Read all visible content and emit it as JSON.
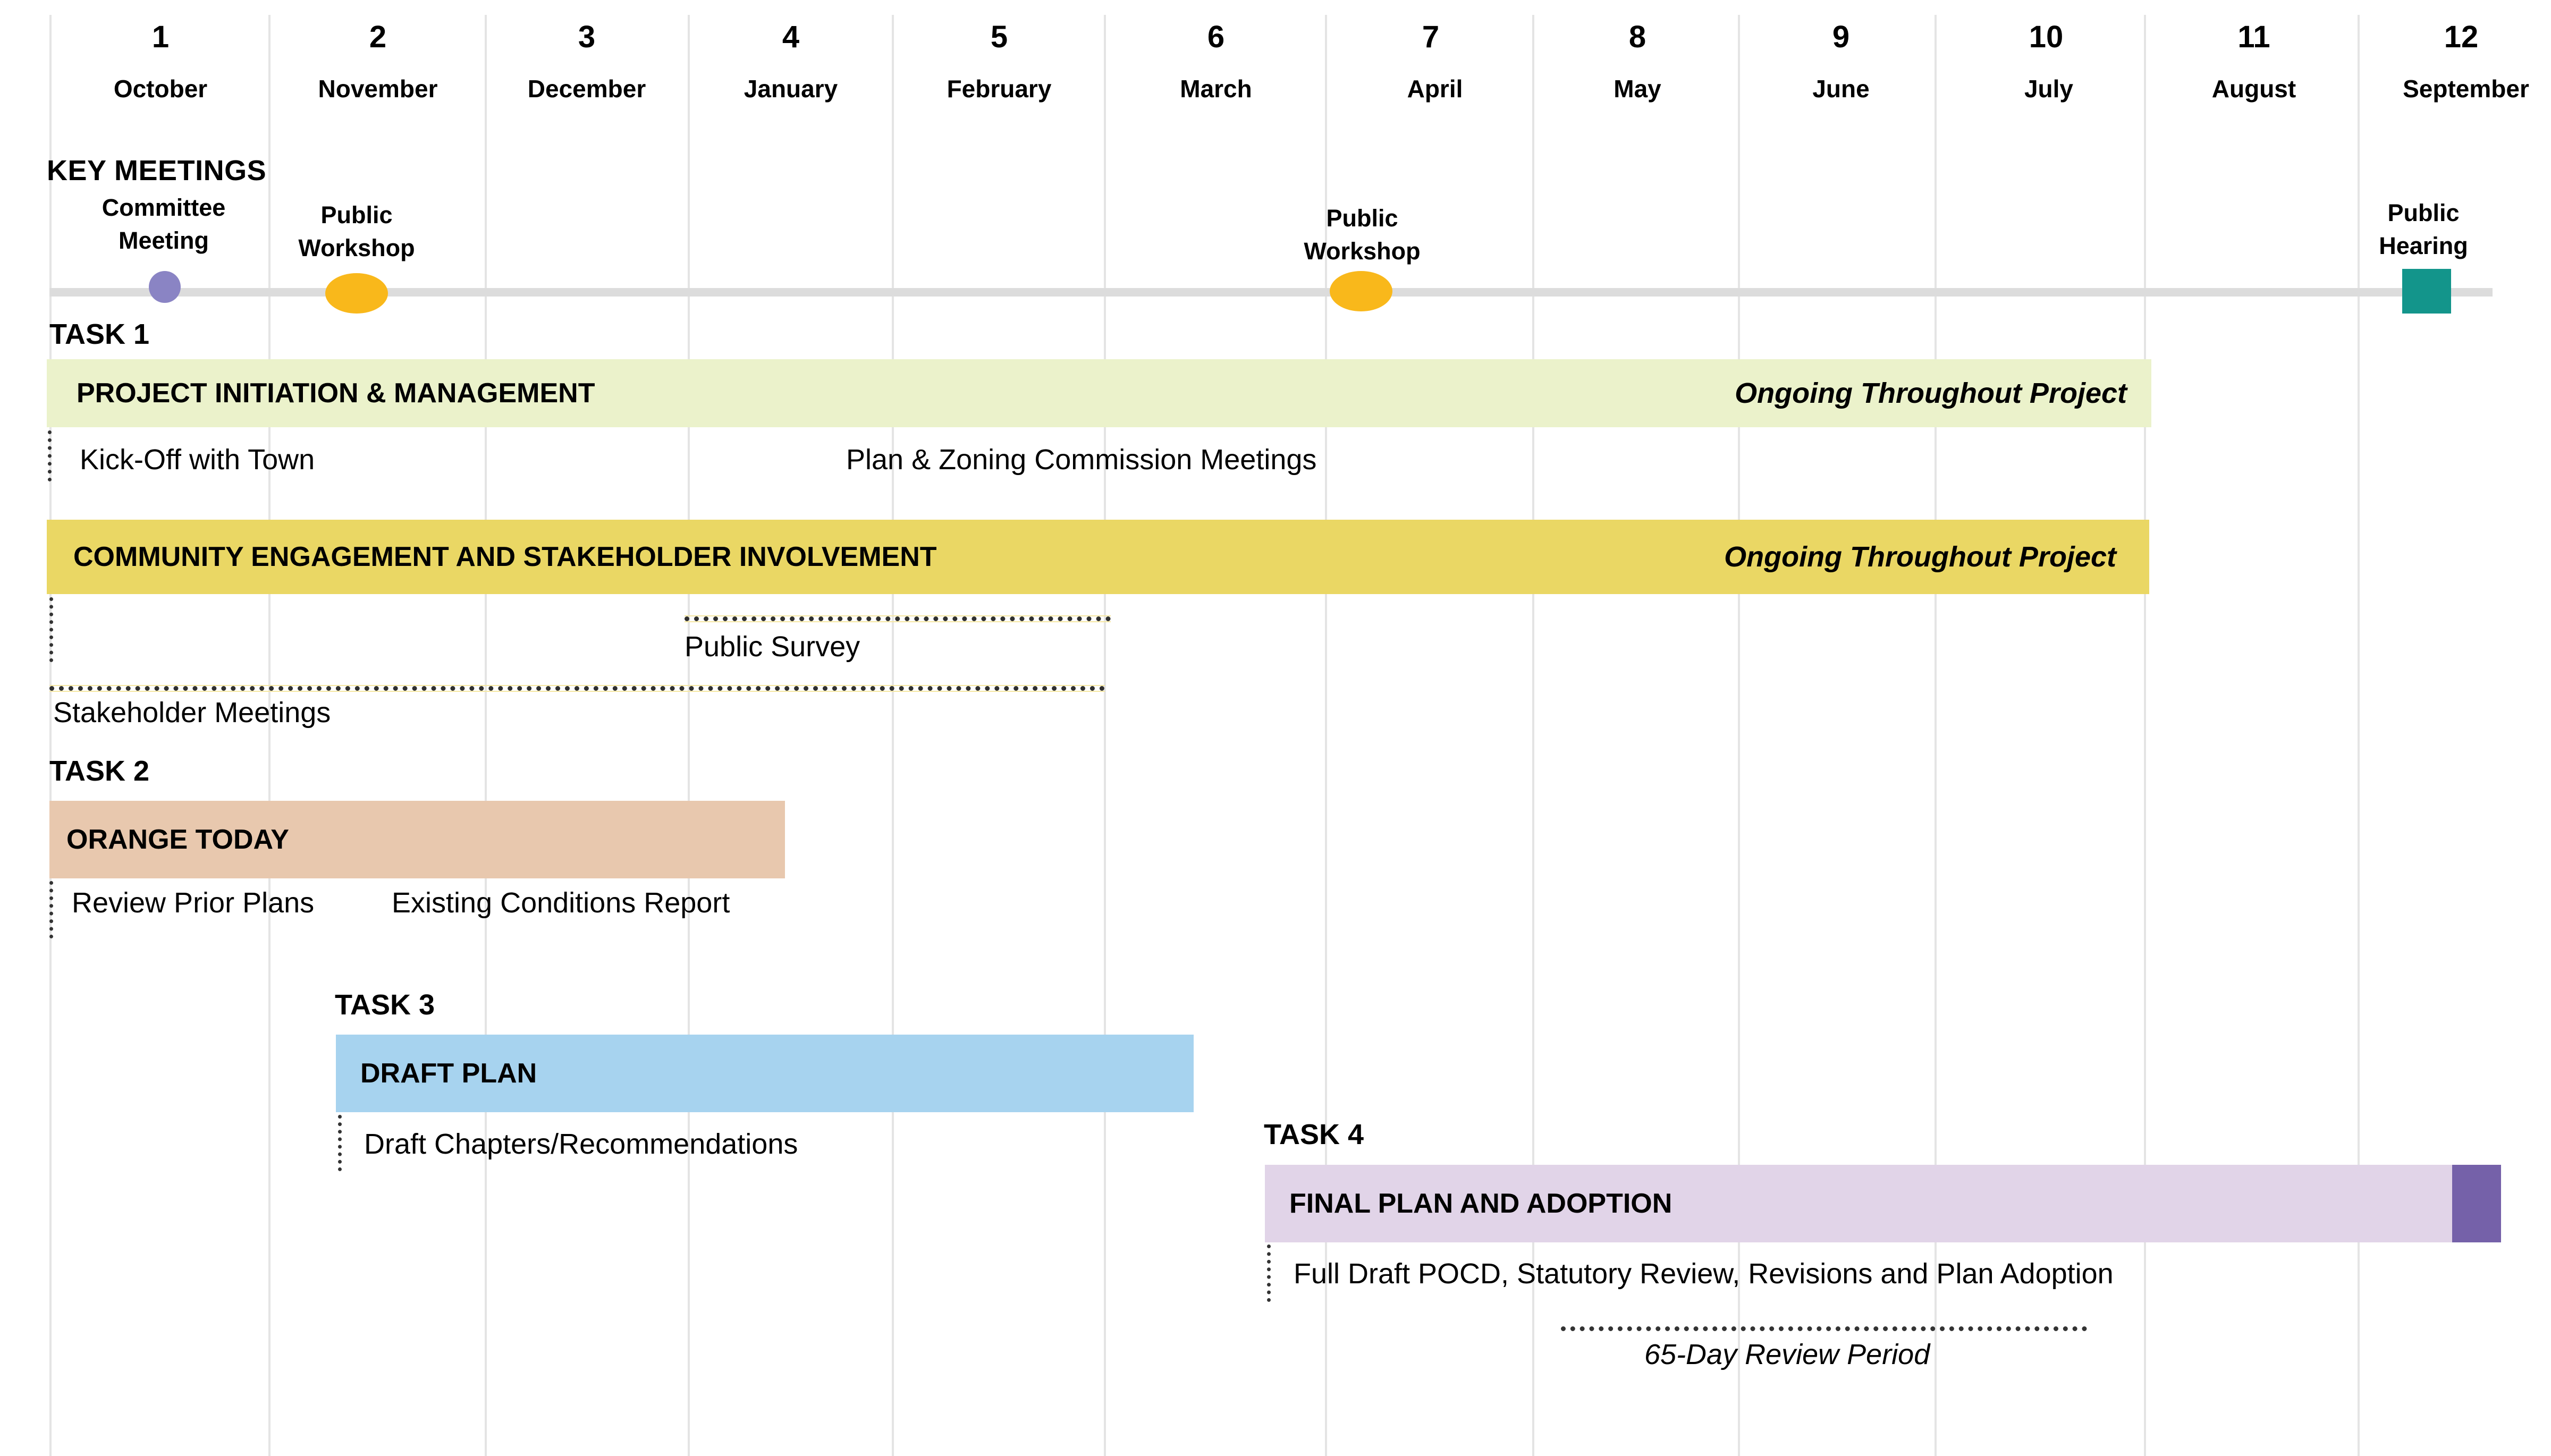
{
  "months": [
    {
      "num": "1",
      "name": "October"
    },
    {
      "num": "2",
      "name": "November"
    },
    {
      "num": "3",
      "name": "December"
    },
    {
      "num": "4",
      "name": "January"
    },
    {
      "num": "5",
      "name": "February"
    },
    {
      "num": "6",
      "name": "March"
    },
    {
      "num": "7",
      "name": "April"
    },
    {
      "num": "8",
      "name": "May"
    },
    {
      "num": "9",
      "name": "June"
    },
    {
      "num": "10",
      "name": "July"
    },
    {
      "num": "11",
      "name": "August"
    },
    {
      "num": "12",
      "name": "September"
    }
  ],
  "key_meetings": {
    "heading": "KEY MEETINGS",
    "items": [
      {
        "line1": "Committee",
        "line2": "Meeting",
        "shape": "circle",
        "color": "#8a84c4"
      },
      {
        "line1": "Public",
        "line2": "Workshop",
        "shape": "oval",
        "color": "#f9b81b"
      },
      {
        "line1": "Public",
        "line2": "Workshop",
        "shape": "oval",
        "color": "#f9b81b"
      },
      {
        "line1": "Public",
        "line2": "Hearing",
        "shape": "square",
        "color": "#13958b"
      }
    ]
  },
  "task1": {
    "label": "TASK 1",
    "bar1": {
      "title": "PROJECT INITIATION & MANAGEMENT",
      "note": "Ongoing Throughout Project",
      "color": "#ebf2cb"
    },
    "sub1": "Kick-Off with Town",
    "sub2": "Plan & Zoning Commission Meetings",
    "bar2": {
      "title": "COMMUNITY ENGAGEMENT AND STAKEHOLDER INVOLVEMENT",
      "note": "Ongoing Throughout Project",
      "color": "#ead764"
    },
    "survey": "Public Survey",
    "stakeholders": "Stakeholder Meetings"
  },
  "task2": {
    "label": "TASK 2",
    "bar": {
      "title": "ORANGE TODAY",
      "color": "#e8c8ae"
    },
    "sub1": "Review Prior Plans",
    "sub2": "Existing Conditions Report"
  },
  "task3": {
    "label": "TASK 3",
    "bar": {
      "title": "DRAFT PLAN",
      "color": "#a7d3ef"
    },
    "sub1": "Draft Chapters/Recommendations"
  },
  "task4": {
    "label": "TASK 4",
    "bar": {
      "title": "FINAL PLAN AND ADOPTION",
      "color": "#e1d4e8",
      "end_color": "#7561a9"
    },
    "sub1": "Full Draft POCD, Statutory Review, Revisions and Plan Adoption",
    "review": "65-Day Review Period"
  }
}
